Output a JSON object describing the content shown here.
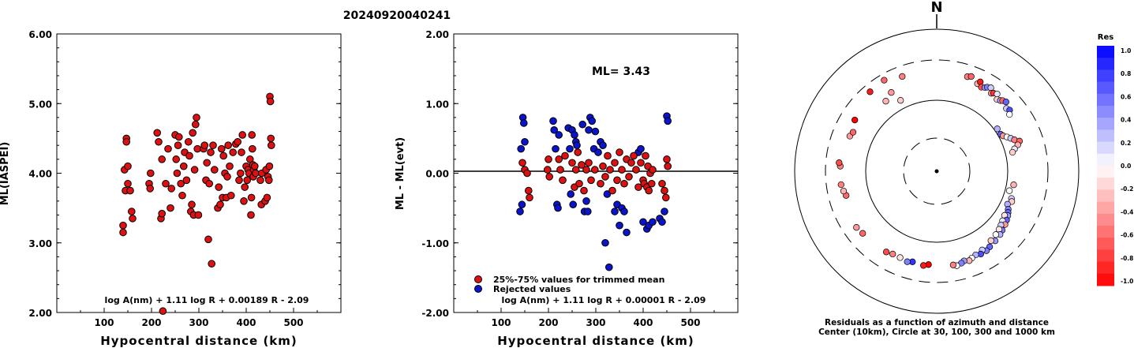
{
  "title": "20240920040241",
  "chart_data": [
    {
      "type": "scatter",
      "name": "",
      "xlabel": "Hypocentral distance (km)",
      "ylabel": "ML(IASPEI)",
      "xlim": [
        0,
        600
      ],
      "ylim": [
        2.0,
        6.0
      ],
      "x_ticks": [
        "100",
        "200",
        "300",
        "400",
        "500"
      ],
      "y_ticks": [
        "2.00",
        "3.00",
        "4.00",
        "5.00",
        "6.00"
      ],
      "formula": "log A(nm) + 1.11 log R + 0.00189 R - 2.09",
      "color": "#dd1111",
      "points": [
        [
          140,
          3.15
        ],
        [
          140,
          3.25
        ],
        [
          143,
          4.05
        ],
        [
          145,
          3.75
        ],
        [
          147,
          4.5
        ],
        [
          147,
          4.45
        ],
        [
          150,
          3.85
        ],
        [
          150,
          4.1
        ],
        [
          155,
          3.75
        ],
        [
          158,
          3.45
        ],
        [
          160,
          3.35
        ],
        [
          195,
          3.85
        ],
        [
          197,
          3.78
        ],
        [
          198,
          4.0
        ],
        [
          212,
          4.58
        ],
        [
          215,
          4.45
        ],
        [
          220,
          3.35
        ],
        [
          222,
          3.42
        ],
        [
          222,
          4.2
        ],
        [
          224,
          2.02
        ],
        [
          230,
          3.85
        ],
        [
          235,
          4.35
        ],
        [
          240,
          3.5
        ],
        [
          242,
          3.78
        ],
        [
          250,
          4.55
        ],
        [
          252,
          4.2
        ],
        [
          254,
          4.0
        ],
        [
          256,
          4.4
        ],
        [
          258,
          4.52
        ],
        [
          262,
          3.85
        ],
        [
          265,
          3.68
        ],
        [
          268,
          4.1
        ],
        [
          270,
          4.3
        ],
        [
          274,
          3.9
        ],
        [
          278,
          4.45
        ],
        [
          280,
          4.25
        ],
        [
          283,
          3.45
        ],
        [
          285,
          3.55
        ],
        [
          287,
          4.58
        ],
        [
          289,
          3.4
        ],
        [
          291,
          4.05
        ],
        [
          293,
          4.7
        ],
        [
          295,
          4.8
        ],
        [
          297,
          4.35
        ],
        [
          299,
          3.4
        ],
        [
          310,
          4.35
        ],
        [
          312,
          4.4
        ],
        [
          315,
          3.9
        ],
        [
          317,
          4.15
        ],
        [
          320,
          3.05
        ],
        [
          322,
          3.85
        ],
        [
          325,
          4.3
        ],
        [
          327,
          2.7
        ],
        [
          330,
          4.4
        ],
        [
          333,
          4.05
        ],
        [
          340,
          3.5
        ],
        [
          342,
          3.8
        ],
        [
          345,
          3.55
        ],
        [
          348,
          4.35
        ],
        [
          350,
          3.65
        ],
        [
          352,
          4.25
        ],
        [
          355,
          4.0
        ],
        [
          358,
          3.65
        ],
        [
          360,
          3.95
        ],
        [
          362,
          4.4
        ],
        [
          365,
          4.1
        ],
        [
          368,
          3.68
        ],
        [
          372,
          4.3
        ],
        [
          378,
          4.42
        ],
        [
          382,
          4.45
        ],
        [
          385,
          3.9
        ],
        [
          388,
          4.0
        ],
        [
          390,
          4.3
        ],
        [
          392,
          4.55
        ],
        [
          395,
          3.6
        ],
        [
          397,
          3.8
        ],
        [
          400,
          4.1
        ],
        [
          402,
          3.9
        ],
        [
          404,
          4.05
        ],
        [
          406,
          4.0
        ],
        [
          408,
          4.2
        ],
        [
          410,
          3.4
        ],
        [
          411,
          3.65
        ],
        [
          412,
          4.55
        ],
        [
          413,
          4.35
        ],
        [
          414,
          4.12
        ],
        [
          415,
          3.95
        ],
        [
          416,
          4.05
        ],
        [
          418,
          4.1
        ],
        [
          420,
          4.0
        ],
        [
          430,
          3.9
        ],
        [
          432,
          3.55
        ],
        [
          433,
          4.0
        ],
        [
          440,
          3.6
        ],
        [
          442,
          4.05
        ],
        [
          444,
          3.65
        ],
        [
          446,
          3.95
        ],
        [
          448,
          3.9
        ],
        [
          449,
          4.1
        ],
        [
          450,
          5.1
        ],
        [
          451,
          5.03
        ],
        [
          452,
          4.5
        ],
        [
          453,
          4.4
        ]
      ]
    },
    {
      "type": "scatter",
      "name": "",
      "xlabel": "Hypocentral distance (km)",
      "ylabel": "ML - ML(evt)",
      "xlim": [
        0,
        600
      ],
      "ylim": [
        -2.0,
        2.0
      ],
      "x_ticks": [
        "100",
        "200",
        "300",
        "400",
        "500"
      ],
      "y_ticks": [
        "-2.00",
        "-1.00",
        "0.00",
        "1.00",
        "2.00"
      ],
      "annotation": "ML= 3.43",
      "formula": "log A(nm) + 1.11 log R + 0.00001 R - 2.09",
      "legend": [
        {
          "label": "25%-75% values for trimmed mean",
          "color": "#dd1111"
        },
        {
          "label": "Rejected values",
          "color": "#0a14cc"
        }
      ],
      "accepted": [
        [
          145,
          0.15
        ],
        [
          150,
          0.05
        ],
        [
          155,
          0.0
        ],
        [
          158,
          -0.25
        ],
        [
          160,
          -0.35
        ],
        [
          198,
          0.05
        ],
        [
          200,
          0.2
        ],
        [
          202,
          -0.05
        ],
        [
          222,
          0.2
        ],
        [
          225,
          0.05
        ],
        [
          230,
          -0.1
        ],
        [
          235,
          0.25
        ],
        [
          250,
          0.15
        ],
        [
          255,
          -0.2
        ],
        [
          258,
          0.05
        ],
        [
          262,
          0.3
        ],
        [
          265,
          -0.15
        ],
        [
          270,
          0.12
        ],
        [
          275,
          -0.25
        ],
        [
          280,
          0.05
        ],
        [
          285,
          0.15
        ],
        [
          290,
          -0.1
        ],
        [
          298,
          0.05
        ],
        [
          310,
          -0.15
        ],
        [
          315,
          0.1
        ],
        [
          320,
          -0.05
        ],
        [
          325,
          0.25
        ],
        [
          330,
          0.05
        ],
        [
          335,
          -0.25
        ],
        [
          340,
          0.15
        ],
        [
          345,
          -0.1
        ],
        [
          350,
          0.3
        ],
        [
          355,
          0.05
        ],
        [
          360,
          -0.15
        ],
        [
          365,
          0.2
        ],
        [
          370,
          -0.05
        ],
        [
          375,
          0.15
        ],
        [
          380,
          0.25
        ],
        [
          385,
          0.05
        ],
        [
          390,
          -0.2
        ],
        [
          395,
          0.15
        ],
        [
          400,
          -0.1
        ],
        [
          402,
          -0.15
        ],
        [
          405,
          0.25
        ],
        [
          408,
          -0.2
        ],
        [
          410,
          0.1
        ],
        [
          412,
          -0.25
        ],
        [
          415,
          0.0
        ],
        [
          418,
          -0.15
        ],
        [
          420,
          0.05
        ],
        [
          440,
          -0.15
        ],
        [
          445,
          -0.25
        ],
        [
          448,
          -0.35
        ],
        [
          450,
          0.2
        ],
        [
          452,
          0.1
        ]
      ],
      "rejected": [
        [
          140,
          -0.55
        ],
        [
          142,
          0.35
        ],
        [
          144,
          -0.45
        ],
        [
          146,
          0.8
        ],
        [
          148,
          0.72
        ],
        [
          150,
          0.45
        ],
        [
          210,
          0.75
        ],
        [
          212,
          0.62
        ],
        [
          215,
          0.35
        ],
        [
          218,
          -0.45
        ],
        [
          220,
          -0.5
        ],
        [
          222,
          0.55
        ],
        [
          242,
          0.65
        ],
        [
          245,
          0.35
        ],
        [
          247,
          -0.3
        ],
        [
          250,
          0.62
        ],
        [
          252,
          -0.45
        ],
        [
          255,
          0.55
        ],
        [
          258,
          0.45
        ],
        [
          260,
          0.4
        ],
        [
          272,
          0.7
        ],
        [
          276,
          -0.55
        ],
        [
          280,
          -0.4
        ],
        [
          283,
          -0.55
        ],
        [
          285,
          0.62
        ],
        [
          288,
          0.8
        ],
        [
          292,
          0.75
        ],
        [
          296,
          0.35
        ],
        [
          299,
          0.6
        ],
        [
          305,
          0.3
        ],
        [
          310,
          0.45
        ],
        [
          315,
          0.4
        ],
        [
          320,
          -1.0
        ],
        [
          324,
          -0.3
        ],
        [
          328,
          -1.35
        ],
        [
          340,
          -0.55
        ],
        [
          345,
          -0.45
        ],
        [
          350,
          -0.75
        ],
        [
          355,
          -0.5
        ],
        [
          360,
          -0.55
        ],
        [
          365,
          -0.85
        ],
        [
          390,
          0.3
        ],
        [
          395,
          0.35
        ],
        [
          400,
          -0.7
        ],
        [
          408,
          -0.8
        ],
        [
          412,
          -0.75
        ],
        [
          420,
          -0.7
        ],
        [
          435,
          -0.65
        ],
        [
          440,
          -0.7
        ],
        [
          445,
          -0.55
        ],
        [
          450,
          0.82
        ],
        [
          452,
          0.75
        ]
      ]
    }
  ],
  "polar": {
    "north_label": "N",
    "caption_line1": "Residuals as a function of azimuth and distance",
    "caption_line2": "Center (10km), Circle at 30, 100, 300 and 1000 km",
    "points": [
      [
        -58,
        0.68,
        -1.0
      ],
      [
        -40,
        0.73,
        -0.9
      ],
      [
        -30,
        0.74,
        -0.6
      ],
      [
        -20,
        0.71,
        -0.5
      ],
      [
        -36,
        0.61,
        -0.3
      ],
      [
        -30,
        0.64,
        -0.4
      ],
      [
        -27,
        0.56,
        -0.2
      ],
      [
        18,
        0.7,
        -0.5
      ],
      [
        20,
        0.71,
        -0.6
      ],
      [
        25,
        0.68,
        -0.3
      ],
      [
        26,
        0.7,
        -0.9
      ],
      [
        28,
        0.67,
        -0.7
      ],
      [
        30,
        0.68,
        0.4
      ],
      [
        31,
        0.69,
        0.5
      ],
      [
        33,
        0.7,
        0.2
      ],
      [
        35,
        0.67,
        -0.4
      ],
      [
        36,
        0.68,
        -0.8
      ],
      [
        38,
        0.69,
        0.1
      ],
      [
        40,
        0.66,
        -0.2
      ],
      [
        42,
        0.67,
        0.3
      ],
      [
        43,
        0.68,
        -0.6
      ],
      [
        45,
        0.69,
        0.6
      ],
      [
        48,
        0.66,
        0.2
      ],
      [
        50,
        0.67,
        0.7
      ],
      [
        52,
        0.65,
        0.0
      ],
      [
        55,
        0.52,
        0.3
      ],
      [
        60,
        0.52,
        0.6
      ],
      [
        62,
        0.53,
        -0.4
      ],
      [
        64,
        0.55,
        0.0
      ],
      [
        66,
        0.57,
        0.2
      ],
      [
        68,
        0.59,
        -0.5
      ],
      [
        70,
        0.62,
        -0.6
      ],
      [
        72,
        0.6,
        -0.3
      ],
      [
        74,
        0.57,
        0.1
      ],
      [
        76,
        0.55,
        -0.2
      ],
      [
        100,
        0.55,
        -0.3
      ],
      [
        105,
        0.53,
        0.0
      ],
      [
        110,
        0.56,
        0.2
      ],
      [
        112,
        0.57,
        -0.2
      ],
      [
        115,
        0.55,
        0.3
      ],
      [
        118,
        0.57,
        0.5
      ],
      [
        120,
        0.58,
        0.6
      ],
      [
        122,
        0.59,
        0.4
      ],
      [
        123,
        0.57,
        -0.1
      ],
      [
        125,
        0.6,
        0.6
      ],
      [
        127,
        0.58,
        0.1
      ],
      [
        128,
        0.61,
        -0.4
      ],
      [
        130,
        0.59,
        0.2
      ],
      [
        132,
        0.62,
        0.5
      ],
      [
        133,
        0.6,
        -0.1
      ],
      [
        135,
        0.63,
        0.3
      ],
      [
        137,
        0.61,
        0.0
      ],
      [
        140,
        0.64,
        0.4
      ],
      [
        142,
        0.62,
        -0.2
      ],
      [
        145,
        0.65,
        0.6
      ],
      [
        148,
        0.66,
        0.5
      ],
      [
        150,
        0.64,
        0.2
      ],
      [
        152,
        0.66,
        0.7
      ],
      [
        155,
        0.65,
        0.3
      ],
      [
        158,
        0.66,
        0.0
      ],
      [
        160,
        0.67,
        -0.3
      ],
      [
        163,
        0.66,
        0.4
      ],
      [
        165,
        0.67,
        0.5
      ],
      [
        168,
        0.68,
        0.0
      ],
      [
        170,
        0.67,
        -0.5
      ],
      [
        185,
        0.66,
        -1.0
      ],
      [
        188,
        0.67,
        -0.9
      ],
      [
        195,
        0.66,
        0.8
      ],
      [
        198,
        0.67,
        0.5
      ],
      [
        203,
        0.66,
        -0.1
      ],
      [
        208,
        0.66,
        -0.5
      ],
      [
        212,
        0.67,
        -0.7
      ],
      [
        230,
        0.68,
        -0.6
      ],
      [
        235,
        0.69,
        -0.4
      ],
      [
        255,
        0.66,
        -0.6
      ],
      [
        258,
        0.67,
        -0.3
      ],
      [
        262,
        0.68,
        -0.5
      ],
      [
        273,
        0.68,
        -0.5
      ],
      [
        275,
        0.69,
        -0.7
      ],
      [
        292,
        0.66,
        -0.4
      ],
      [
        295,
        0.65,
        -0.6
      ]
    ]
  },
  "colorbar": {
    "title": "Res",
    "labels": [
      "1.0",
      "0.8",
      "0.6",
      "0.4",
      "0.2",
      "0.0",
      "-0.2",
      "-0.4",
      "-0.6",
      "-0.8",
      "-1.0"
    ]
  }
}
